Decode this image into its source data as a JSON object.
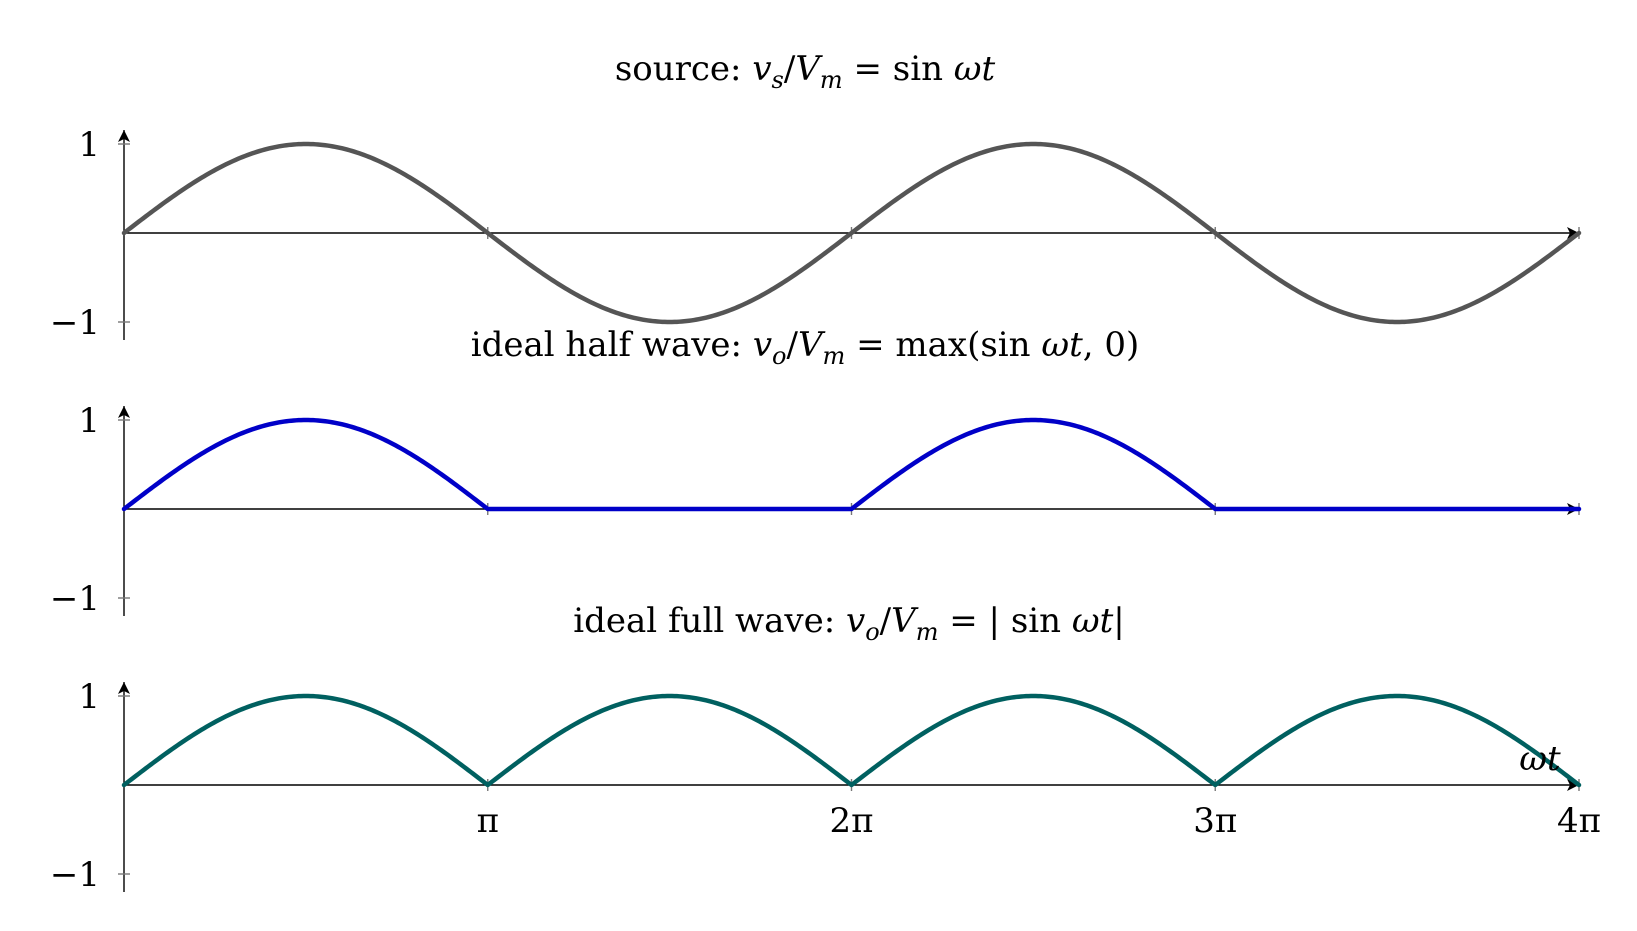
{
  "chart_data": [
    {
      "type": "line",
      "title": "source: vs/Vm = sin ωt",
      "xlim": [
        0,
        12.566370614359172
      ],
      "ylim": [
        -1,
        1
      ],
      "xticks": [
        3.141592653589793,
        6.283185307179586,
        9.42477796076938,
        12.566370614359172
      ],
      "xtick_labels": [],
      "yticks": [
        1,
        -1
      ],
      "ytick_labels": [
        "1",
        "−1"
      ],
      "xlabel": "",
      "ylabel": "",
      "grid": false,
      "series": [
        {
          "function": "sin",
          "color": "#555555"
        }
      ]
    },
    {
      "type": "line",
      "title": "ideal half wave: vo/Vm = max(sin ωt, 0)",
      "xlim": [
        0,
        12.566370614359172
      ],
      "ylim": [
        -1,
        1
      ],
      "xticks": [
        3.141592653589793,
        6.283185307179586,
        9.42477796076938,
        12.566370614359172
      ],
      "xtick_labels": [],
      "yticks": [
        1,
        -1
      ],
      "ytick_labels": [
        "1",
        "−1"
      ],
      "xlabel": "",
      "ylabel": "",
      "grid": false,
      "series": [
        {
          "function": "half",
          "color": "#0000c8"
        }
      ]
    },
    {
      "type": "line",
      "title": "ideal full wave: vo/Vm = |sin ωt|",
      "xlim": [
        0,
        12.566370614359172
      ],
      "ylim": [
        -1,
        1
      ],
      "xticks": [
        3.141592653589793,
        6.283185307179586,
        9.42477796076938,
        12.566370614359172
      ],
      "xtick_labels": [
        "π",
        "2π",
        "3π",
        "4π"
      ],
      "yticks": [
        1,
        -1
      ],
      "ytick_labels": [
        "1",
        "−1"
      ],
      "xlabel": "ωt",
      "ylabel": "",
      "grid": false,
      "series": [
        {
          "function": "full",
          "color": "#006060"
        }
      ]
    }
  ]
}
